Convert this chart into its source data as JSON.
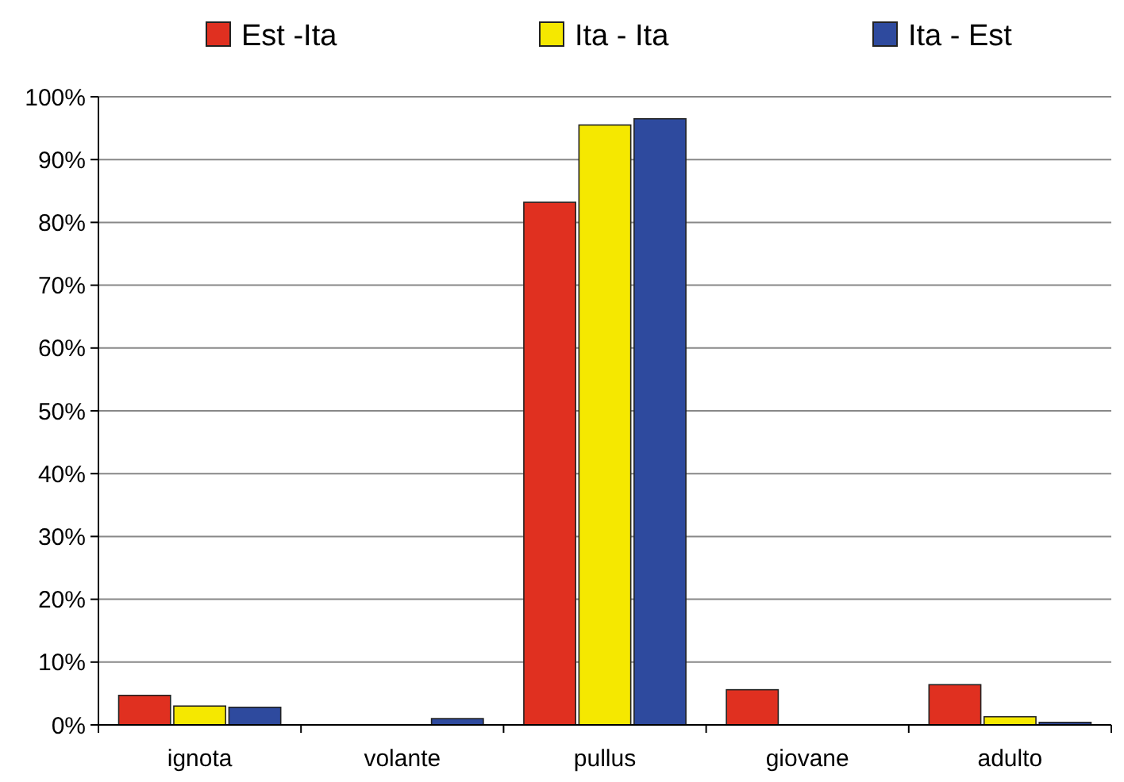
{
  "chart_data": {
    "type": "bar",
    "categories": [
      "ignota",
      "volante",
      "pullus",
      "giovane",
      "adulto"
    ],
    "series": [
      {
        "name": "Est -Ita",
        "color": "#e03020",
        "values": [
          4.7,
          0,
          83.2,
          5.6,
          6.4
        ]
      },
      {
        "name": "Ita - Ita",
        "color": "#f5e800",
        "values": [
          3,
          0,
          95.5,
          0,
          1.3
        ]
      },
      {
        "name": "Ita - Est",
        "color": "#2e4a9e",
        "values": [
          2.8,
          1,
          96.5,
          0,
          0.4
        ]
      }
    ],
    "ylim": [
      0,
      100
    ],
    "yticks": [
      {
        "value": 0,
        "label": "0%"
      },
      {
        "value": 10,
        "label": "10%"
      },
      {
        "value": 20,
        "label": "20%"
      },
      {
        "value": 30,
        "label": "30%"
      },
      {
        "value": 40,
        "label": "40%"
      },
      {
        "value": 50,
        "label": "50%"
      },
      {
        "value": 60,
        "label": "60%"
      },
      {
        "value": 70,
        "label": "70%"
      },
      {
        "value": 80,
        "label": "80%"
      },
      {
        "value": 90,
        "label": "90%"
      },
      {
        "value": 100,
        "label": "100%"
      }
    ],
    "grid": "y",
    "legend": "top"
  }
}
